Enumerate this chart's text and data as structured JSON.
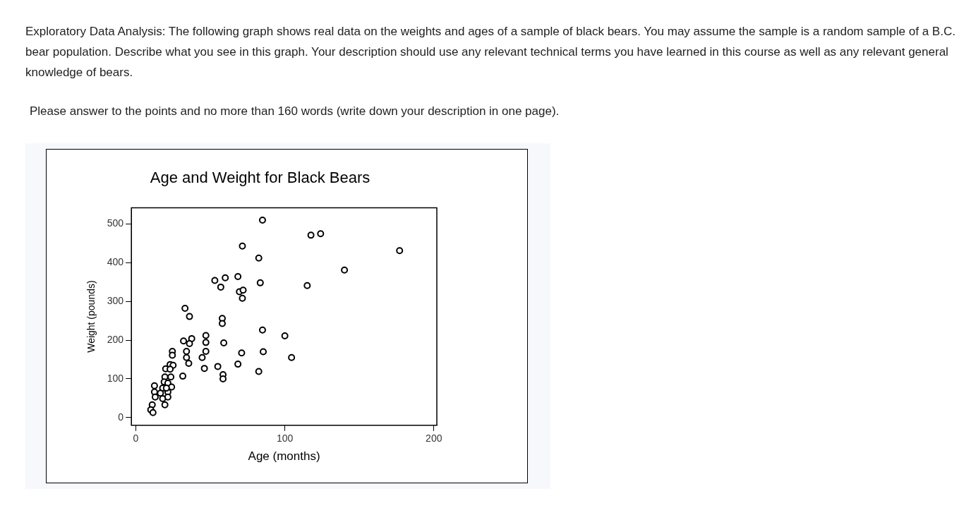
{
  "chart_data": {
    "type": "scatter",
    "title": "Age and Weight for Black Bears",
    "xlabel": "Age (months)",
    "ylabel": "Weight (pounds)",
    "annotations": [
      "Exploratory Data Analysis: The following graph shows real data on the weights and ages of a sample of black bears. You may assume the sample is a random sample of a B.C. bear population. Describe what you see in this graph. Your description should use any relevant technical terms you have learned in this course as well as any relevant general knowledge of bears.",
      "Please answer to the points and no more than 160 words (write down your description in one page)."
    ],
    "x": [
      85,
      117.5,
      124,
      71.5,
      82.5,
      177,
      140,
      115,
      83.5,
      53,
      60,
      57,
      68.5,
      69.5,
      72,
      71.5,
      58,
      58,
      85,
      100,
      59,
      85.5,
      104.5,
      71,
      68.5,
      82.5,
      55,
      58.5,
      58.5,
      33,
      36,
      47,
      47,
      37.5,
      32,
      36,
      47,
      44.5,
      46,
      34,
      34,
      35.5,
      31.5,
      24.5,
      24.5,
      23,
      25,
      20,
      23,
      19.5,
      23.5,
      19,
      21.5,
      24,
      18,
      21.5,
      18,
      21.5,
      19.5,
      12.5,
      12.5,
      13,
      11,
      10,
      11.5,
      20.5,
      16.5
    ],
    "values": [
      510,
      471,
      475,
      443,
      412,
      431,
      381,
      341,
      348,
      354,
      361,
      337,
      364,
      325,
      329,
      308,
      256,
      243,
      226,
      211,
      193,
      170,
      155,
      167,
      138,
      119,
      132,
      111,
      100,
      282,
      261,
      212,
      194,
      204,
      198,
      191,
      171,
      155,
      127,
      171,
      155,
      140,
      107,
      171,
      161,
      137,
      135,
      126,
      125,
      105,
      105,
      92,
      89,
      79,
      76,
      66,
      49,
      53,
      33,
      82,
      66,
      53,
      33,
      20,
      13,
      76,
      63
    ],
    "color": "#000000",
    "marker": "circle",
    "grid": false,
    "legend": false,
    "xlim": [
      -3,
      202
    ],
    "ylim": [
      -20,
      542
    ],
    "xticks": [
      0,
      100,
      200
    ],
    "yticks": [
      0,
      100,
      200,
      300,
      400,
      500
    ]
  }
}
